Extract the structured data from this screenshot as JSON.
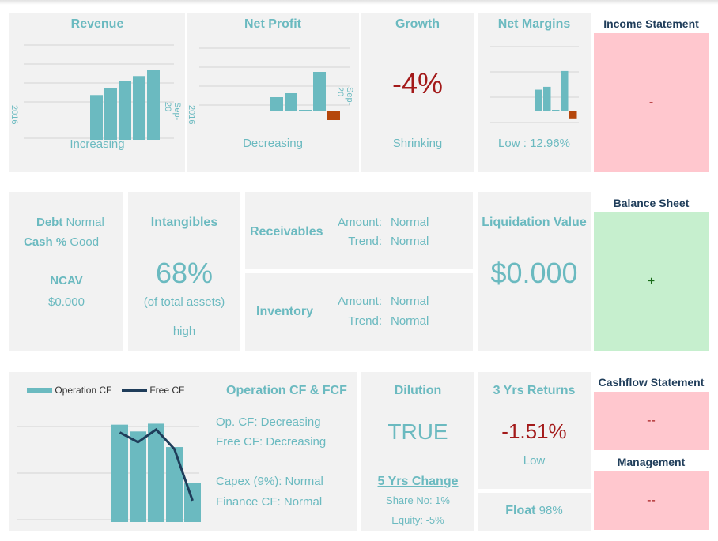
{
  "revenue": {
    "title": "Revenue",
    "status": "Increasing",
    "axis_start": "2016",
    "axis_end": "Sep-20"
  },
  "net_profit": {
    "title": "Net Profit",
    "status": "Decreasing",
    "axis_start": "2016",
    "axis_end": "Sep-20"
  },
  "growth": {
    "title": "Growth",
    "value": "-4%",
    "status": "Shrinking"
  },
  "net_margins": {
    "title": "Net Margins",
    "status": "Low : 12.96%"
  },
  "income_statement": {
    "title": "Income Statement",
    "value": "-"
  },
  "debt_cash": {
    "debt_label": "Debt",
    "debt_value": "Normal",
    "cash_label": "Cash %",
    "cash_value": "Good",
    "ncav_label": "NCAV",
    "ncav_value": "$0.000"
  },
  "intangibles": {
    "title": "Intangibles",
    "value": "68%",
    "note": "(of total assets)",
    "level": "high"
  },
  "receivables": {
    "title": "Receivables",
    "amount_label": "Amount:",
    "amount_value": "Normal",
    "trend_label": "Trend:",
    "trend_value": "Normal"
  },
  "inventory": {
    "title": "Inventory",
    "amount_label": "Amount:",
    "amount_value": "Normal",
    "trend_label": "Trend:",
    "trend_value": "Normal"
  },
  "liquidation": {
    "title": "Liquidation Value",
    "value": "$0.000"
  },
  "balance_sheet": {
    "title": "Balance Sheet",
    "value": "+"
  },
  "cashflow_chart": {
    "legend_bar": "Operation CF",
    "legend_line": "Free CF"
  },
  "op_cf_fcf": {
    "title": "Operation CF & FCF",
    "line1": "Op. CF: Decreasing",
    "line2": "Free CF: Decreasing",
    "line3": "Capex (9%): Normal",
    "line4": "Finance CF: Normal"
  },
  "dilution": {
    "title": "Dilution",
    "value": "TRUE",
    "change_title": "5 Yrs Change",
    "share_no": "Share No: 1%",
    "equity": "Equity: -5%"
  },
  "returns": {
    "title": "3 Yrs Returns",
    "value": "-1.51%",
    "status": "Low"
  },
  "float": {
    "label": "Float",
    "value": "98%"
  },
  "cashflow_statement": {
    "title": "Cashflow Statement",
    "value": "--"
  },
  "management": {
    "title": "Management",
    "value": "--"
  },
  "colors": {
    "teal": "#6bbac0",
    "dark_red": "#a31a1a",
    "orange": "#b5470b",
    "navy": "#1f3d5a",
    "card_bg": "#f2f2f2",
    "pink": "#ffc7ce",
    "green": "#c6efce"
  },
  "chart_data": [
    {
      "type": "bar",
      "name": "revenue",
      "categories": [
        "1",
        "2",
        "3",
        "4",
        "5"
      ],
      "values": [
        52,
        60,
        68,
        74,
        81
      ],
      "ylim": [
        0,
        110
      ]
    },
    {
      "type": "bar",
      "name": "net_profit",
      "categories": [
        "1",
        "2",
        "3",
        "4",
        "5",
        "6"
      ],
      "values": [
        18,
        23,
        2,
        50,
        -11,
        0
      ],
      "ylim": [
        -20,
        80
      ]
    },
    {
      "type": "bar",
      "name": "net_margins",
      "categories": [
        "1",
        "2",
        "3",
        "4",
        "5"
      ],
      "values": [
        30,
        34,
        2,
        56,
        -11
      ],
      "ylim": [
        -20,
        90
      ]
    },
    {
      "type": "bar+line",
      "name": "cashflow",
      "categories": [
        "1",
        "2",
        "3",
        "4",
        "5"
      ],
      "bars": [
        100,
        93,
        101,
        77,
        40
      ],
      "line": [
        92,
        82,
        95,
        75,
        22
      ],
      "ylim": [
        0,
        120
      ]
    }
  ]
}
